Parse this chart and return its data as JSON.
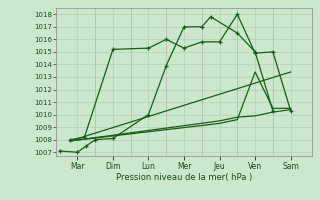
{
  "xlabel": "Pression niveau de la mer( hPa )",
  "background_color": "#cce8cc",
  "grid_color": "#aaccaa",
  "line_color": "#1a5c1a",
  "days": [
    "Mar",
    "Dim",
    "Lun",
    "Mer",
    "Jeu",
    "Ven",
    "Sam"
  ],
  "xlim": [
    -0.1,
    7.1
  ],
  "ylim": [
    1006.7,
    1018.5
  ],
  "yticks": [
    1007,
    1008,
    1009,
    1010,
    1011,
    1012,
    1013,
    1014,
    1015,
    1016,
    1017,
    1018
  ],
  "xtick_positions": [
    0.5,
    1.5,
    2.5,
    3.5,
    4.5,
    5.5,
    6.5
  ],
  "line1_x": [
    0.0,
    0.5,
    0.75,
    1.0,
    1.5,
    2.5,
    3.0,
    3.5,
    4.0,
    4.25,
    5.0,
    5.5,
    6.0
  ],
  "line1_y": [
    1007.1,
    1007.0,
    1007.5,
    1008.0,
    1008.1,
    1010.0,
    1013.9,
    1017.0,
    1017.0,
    1017.8,
    1016.5,
    1015.0,
    1010.3
  ],
  "line2_x": [
    0.3,
    0.7,
    1.5,
    2.5,
    3.0,
    3.5,
    4.0,
    4.5,
    5.0,
    5.5,
    6.0,
    6.5
  ],
  "line2_y": [
    1008.0,
    1008.2,
    1015.2,
    1015.3,
    1016.0,
    1015.3,
    1015.8,
    1015.8,
    1018.0,
    1014.9,
    1015.0,
    1010.3
  ],
  "line3_x": [
    0.3,
    6.5
  ],
  "line3_y": [
    1007.9,
    1013.4
  ],
  "line4_x": [
    0.3,
    4.5,
    5.0,
    5.5,
    6.0,
    6.5
  ],
  "line4_y": [
    1007.9,
    1009.5,
    1009.8,
    1009.9,
    1010.2,
    1010.4
  ],
  "line5_x": [
    0.3,
    4.5,
    5.0,
    5.5,
    6.0,
    6.5
  ],
  "line5_y": [
    1007.9,
    1009.3,
    1009.6,
    1013.4,
    1010.5,
    1010.5
  ]
}
